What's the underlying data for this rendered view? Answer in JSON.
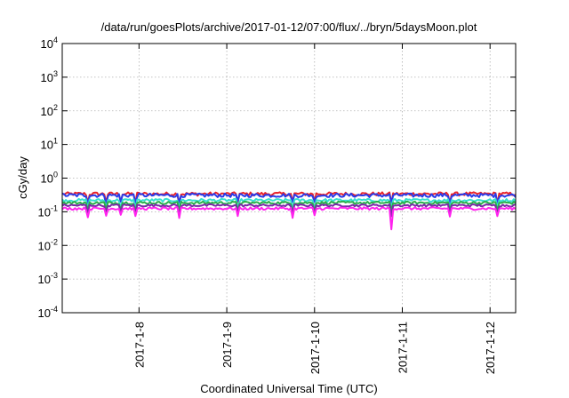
{
  "chart_data": {
    "type": "line",
    "title": "/data/run/goesPlots/archive/2017-01-12/07:00/flux/../bryn/5daysMoon.plot",
    "xlabel": "Coordinated Universal Time (UTC)",
    "ylabel": "cGy/day",
    "yscale": "log",
    "ylim": [
      0.0001,
      10000
    ],
    "xlim": [
      "2017-01-07T03:00",
      "2017-01-12T07:00"
    ],
    "grid": true,
    "y_ticks": [
      {
        "base": "10",
        "exp": "-4"
      },
      {
        "base": "10",
        "exp": "-3"
      },
      {
        "base": "10",
        "exp": "-2"
      },
      {
        "base": "10",
        "exp": "-1"
      },
      {
        "base": "10",
        "exp": "0"
      },
      {
        "base": "10",
        "exp": "1"
      },
      {
        "base": "10",
        "exp": "2"
      },
      {
        "base": "10",
        "exp": "3"
      },
      {
        "base": "10",
        "exp": "4"
      }
    ],
    "x_ticks": [
      {
        "label": "2017-1-8",
        "time": "2017-01-08T00:00"
      },
      {
        "label": "2017-1-9",
        "time": "2017-01-09T00:00"
      },
      {
        "label": "2017-1-10",
        "time": "2017-01-10T00:00"
      },
      {
        "label": "2017-1-11",
        "time": "2017-01-11T00:00"
      },
      {
        "label": "2017-1-12",
        "time": "2017-01-12T00:00"
      }
    ],
    "series": [
      {
        "color": "#e8232a",
        "level": 0.34,
        "jitter": 0.12,
        "dip": 0.55
      },
      {
        "color": "#2a3be8",
        "level": 0.31,
        "jitter": 0.13,
        "dip": 0.6
      },
      {
        "color": "#36e0d0",
        "level": 0.22,
        "jitter": 0.1,
        "dip": 0.6
      },
      {
        "color": "#2ab04a",
        "level": 0.185,
        "jitter": 0.09,
        "dip": 0.55
      },
      {
        "color": "#7a2aa8",
        "level": 0.155,
        "jitter": 0.08,
        "dip": 0.5
      },
      {
        "color": "#ff22ee",
        "level": 0.125,
        "jitter": 0.09,
        "dip": 0.3
      }
    ],
    "spikes": [
      {
        "time": "2017-01-07T10:00",
        "depth": 0.55
      },
      {
        "time": "2017-01-07T15:00",
        "depth": 0.6
      },
      {
        "time": "2017-01-07T19:00",
        "depth": 0.65
      },
      {
        "time": "2017-01-07T23:00",
        "depth": 0.55
      },
      {
        "time": "2017-01-08T11:00",
        "depth": 0.5
      },
      {
        "time": "2017-01-09T03:00",
        "depth": 0.6
      },
      {
        "time": "2017-01-09T18:00",
        "depth": 0.55
      },
      {
        "time": "2017-01-10T00:00",
        "depth": 0.6
      },
      {
        "time": "2017-01-10T21:00",
        "depth": 0.25
      },
      {
        "time": "2017-01-11T13:00",
        "depth": 0.6
      },
      {
        "time": "2017-01-12T02:00",
        "depth": 0.55
      }
    ]
  }
}
